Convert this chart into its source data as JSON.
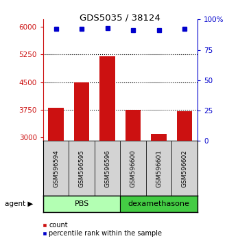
{
  "title": "GDS5035 / 38124",
  "samples": [
    "GSM596594",
    "GSM596595",
    "GSM596596",
    "GSM596600",
    "GSM596601",
    "GSM596602"
  ],
  "counts": [
    3800,
    4500,
    5200,
    3750,
    3100,
    3700
  ],
  "percentiles": [
    92,
    92,
    93,
    91,
    91,
    92
  ],
  "ylim_left": [
    2900,
    6200
  ],
  "ylim_right": [
    0,
    100
  ],
  "yticks_left": [
    3000,
    3750,
    4500,
    5250,
    6000
  ],
  "ytick_labels_left": [
    "3000",
    "3750",
    "4500",
    "5250",
    "6000"
  ],
  "yticks_right": [
    0,
    25,
    50,
    75,
    100
  ],
  "ytick_labels_right": [
    "0",
    "25",
    "50",
    "75",
    "100%"
  ],
  "bar_color": "#cc1111",
  "dot_color": "#0000cc",
  "pbs_color": "#b3ffb3",
  "dex_color": "#44cc44",
  "pbs_label": "PBS",
  "dex_label": "dexamethasone",
  "agent_label": "agent",
  "legend_count": "count",
  "legend_pct": "percentile rank within the sample",
  "hline_values": [
    3750,
    4500,
    5250
  ],
  "label_box_color": "#d3d3d3",
  "n_pbs": 3,
  "n_dex": 3
}
